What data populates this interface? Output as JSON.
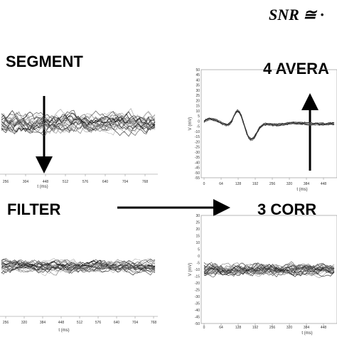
{
  "snr": "SNR ≅ ·",
  "steps": {
    "segment": "SEGMENT",
    "filter": "FILTER",
    "correct": "3 CORR",
    "average": "4 AVERA"
  },
  "panels": [
    {
      "x_ticks": [
        256,
        304,
        448,
        512,
        576,
        640,
        704,
        768
      ],
      "x_label": "t (ms)"
    },
    {
      "y_label": "V (mV)",
      "y_ticks": [
        50,
        45,
        40,
        35,
        30,
        25,
        20,
        15,
        10,
        5,
        0,
        -5,
        -10,
        -15,
        -20,
        -25,
        -30,
        -35,
        -40,
        -45,
        -50,
        -55
      ],
      "x_ticks": [
        0,
        64,
        128,
        192,
        256,
        320,
        384,
        448
      ],
      "x_label": "t (ms)"
    },
    {
      "x_ticks": [
        256,
        320,
        384,
        448,
        512,
        576,
        640,
        704,
        768
      ],
      "x_label": "t (ms)"
    },
    {
      "y_label": "V (mV)",
      "y_ticks": [
        30,
        25,
        20,
        15,
        10,
        5,
        0,
        -5,
        -10,
        -15,
        -20,
        -25,
        -30,
        -35,
        -40,
        -45,
        -50
      ],
      "x_ticks": [
        0,
        64,
        128,
        192,
        256,
        320,
        384,
        448
      ],
      "x_label": "t (ms)"
    }
  ]
}
